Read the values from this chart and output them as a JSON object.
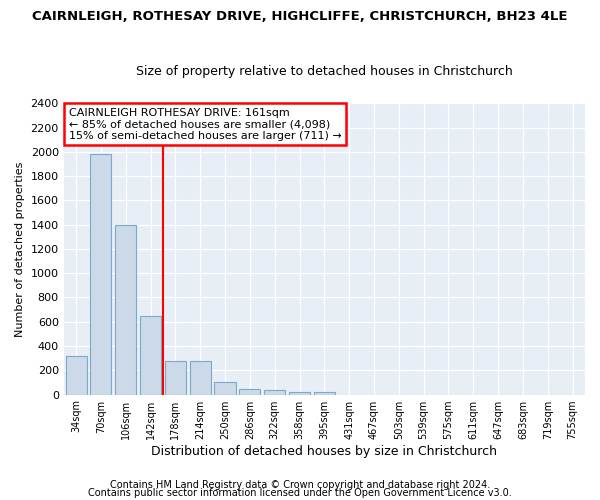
{
  "title": "CAIRNLEIGH, ROTHESAY DRIVE, HIGHCLIFFE, CHRISTCHURCH, BH23 4LE",
  "subtitle": "Size of property relative to detached houses in Christchurch",
  "xlabel": "Distribution of detached houses by size in Christchurch",
  "ylabel": "Number of detached properties",
  "bar_color": "#ccd9e8",
  "bar_edge_color": "#7aaac8",
  "categories": [
    "34sqm",
    "70sqm",
    "106sqm",
    "142sqm",
    "178sqm",
    "214sqm",
    "250sqm",
    "286sqm",
    "322sqm",
    "358sqm",
    "395sqm",
    "431sqm",
    "467sqm",
    "503sqm",
    "539sqm",
    "575sqm",
    "611sqm",
    "647sqm",
    "683sqm",
    "719sqm",
    "755sqm"
  ],
  "values": [
    320,
    1980,
    1400,
    650,
    280,
    280,
    100,
    45,
    40,
    25,
    20,
    0,
    0,
    0,
    0,
    0,
    0,
    0,
    0,
    0,
    0
  ],
  "ylim": [
    0,
    2400
  ],
  "yticks": [
    0,
    200,
    400,
    600,
    800,
    1000,
    1200,
    1400,
    1600,
    1800,
    2000,
    2200,
    2400
  ],
  "red_line_x": 3.5,
  "annotation_line1": "CAIRNLEIGH ROTHESAY DRIVE: 161sqm",
  "annotation_line2": "← 85% of detached houses are smaller (4,098)",
  "annotation_line3": "15% of semi-detached houses are larger (711) →",
  "footer1": "Contains HM Land Registry data © Crown copyright and database right 2024.",
  "footer2": "Contains public sector information licensed under the Open Government Licence v3.0.",
  "background_color": "#ffffff",
  "plot_bg_color": "#e8eef5",
  "grid_color": "#ffffff",
  "title_fontsize": 9.5,
  "subtitle_fontsize": 9,
  "ylabel_fontsize": 8,
  "xlabel_fontsize": 9,
  "ytick_fontsize": 8,
  "xtick_fontsize": 7,
  "footer_fontsize": 7,
  "annotation_fontsize": 8
}
